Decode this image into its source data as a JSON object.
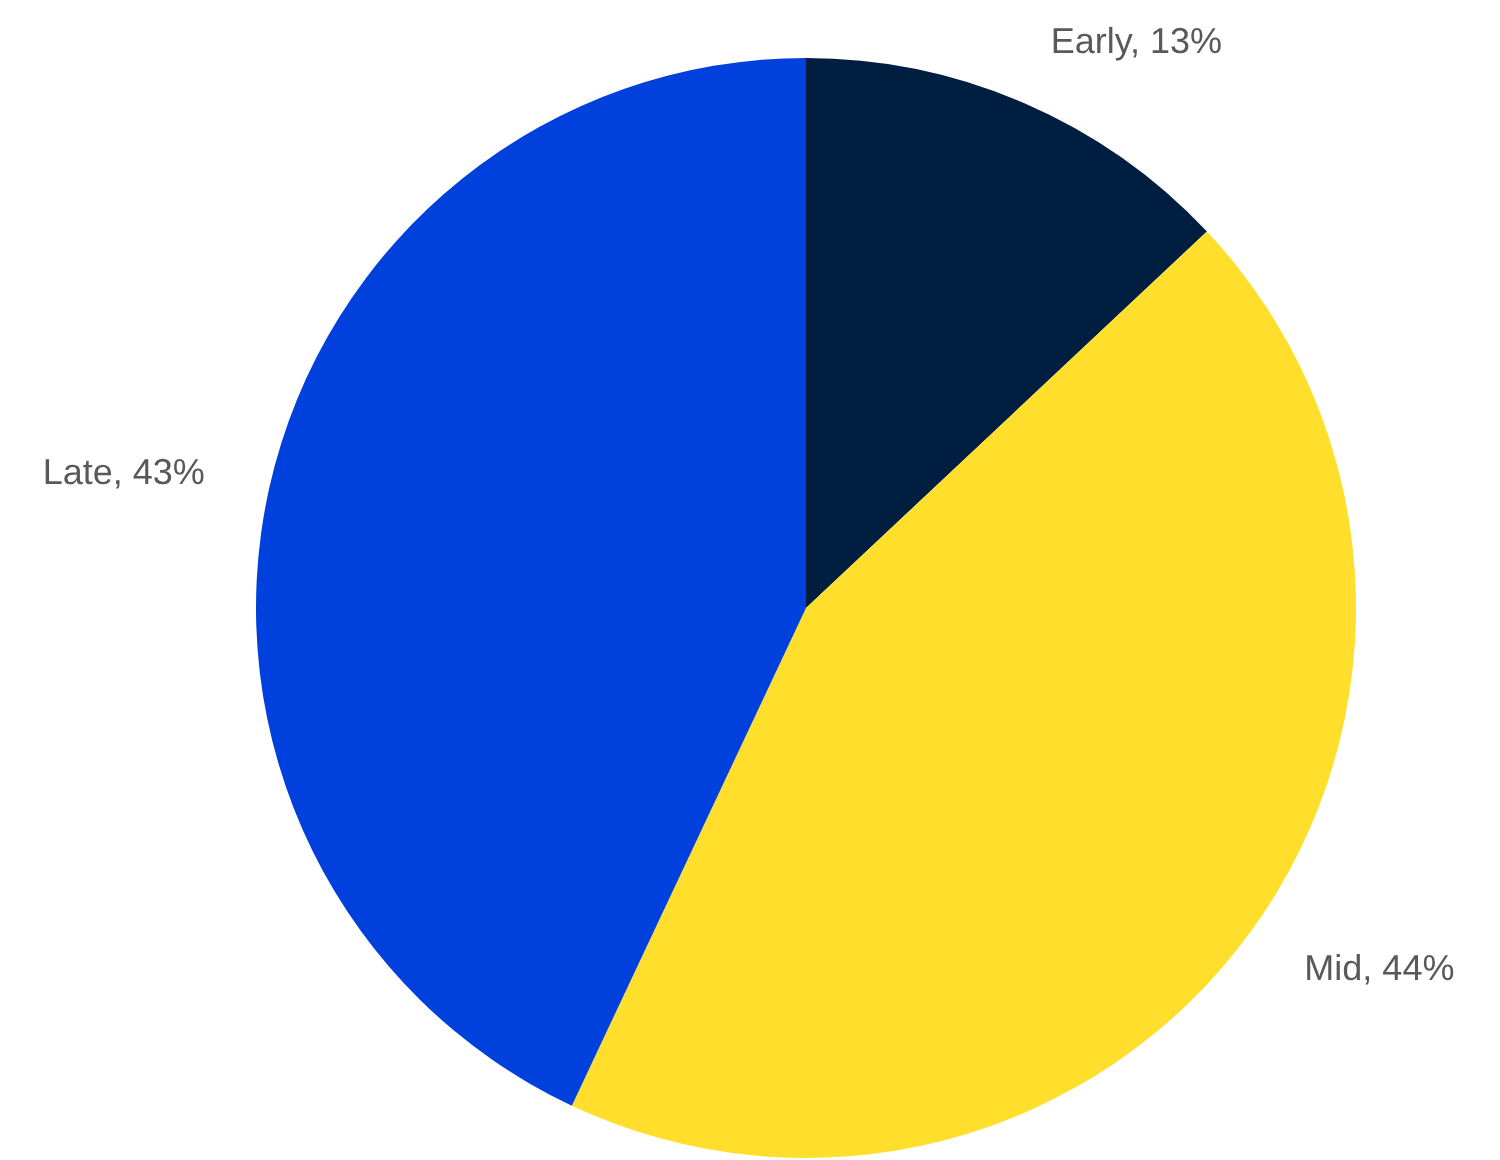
{
  "chart_data": {
    "type": "pie",
    "categories": [
      "Early",
      "Mid",
      "Late"
    ],
    "values": [
      13,
      44,
      43
    ],
    "colors": [
      "#001f40",
      "#ffdf2b",
      "#0040dd"
    ],
    "value_labels": [
      "13%",
      "44%",
      "43%"
    ],
    "legend": false
  }
}
